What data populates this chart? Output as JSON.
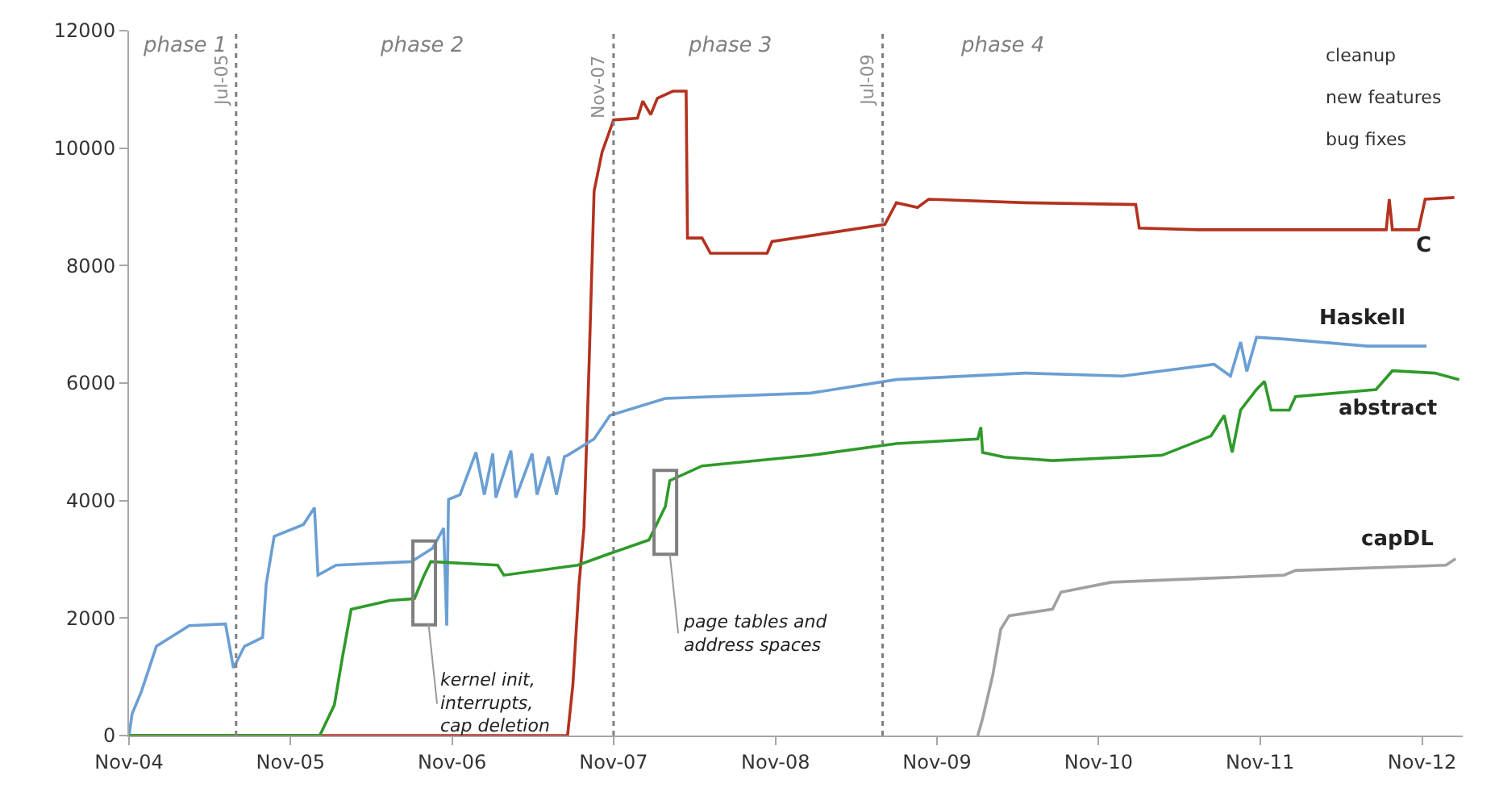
{
  "chart_data": {
    "type": "line",
    "xlim": [
      "2004-11-01",
      "2013-02-01"
    ],
    "ylim": [
      0,
      12000
    ],
    "xticks": [
      {
        "value": "2004-11-01",
        "label": "Nov-04"
      },
      {
        "value": "2005-11-01",
        "label": "Nov-05"
      },
      {
        "value": "2006-11-01",
        "label": "Nov-06"
      },
      {
        "value": "2007-11-01",
        "label": "Nov-07"
      },
      {
        "value": "2008-11-01",
        "label": "Nov-08"
      },
      {
        "value": "2009-11-01",
        "label": "Nov-09"
      },
      {
        "value": "2010-11-01",
        "label": "Nov-10"
      },
      {
        "value": "2011-11-01",
        "label": "Nov-11"
      },
      {
        "value": "2012-11-01",
        "label": "Nov-12"
      }
    ],
    "yticks": [
      0,
      2000,
      4000,
      6000,
      8000,
      10000,
      12000
    ],
    "legend": false,
    "marker": "none",
    "line_style": "solid",
    "series": [
      {
        "name": "C",
        "color": "#b3321f",
        "x": [
          "2004-11-01",
          "2007-07-20",
          "2007-08-01",
          "2007-08-15",
          "2007-08-26",
          "2007-09-07",
          "2007-09-18",
          "2007-10-06",
          "2007-11-01",
          "2007-12-25",
          "2008-01-06",
          "2008-01-24",
          "2008-02-08",
          "2008-03-14",
          "2008-04-13",
          "2008-04-16",
          "2008-05-19",
          "2008-06-07",
          "2008-10-13",
          "2008-10-24",
          "2009-07-06",
          "2009-08-01",
          "2009-09-18",
          "2009-10-13",
          "2010-05-19",
          "2011-01-24",
          "2011-02-01",
          "2011-06-14",
          "2012-08-12",
          "2012-08-19",
          "2012-08-26",
          "2012-10-24",
          "2012-11-08",
          "2013-01-13"
        ],
        "values": [
          0,
          0,
          860,
          2580,
          3530,
          6400,
          9270,
          9930,
          10480,
          10510,
          10800,
          10570,
          10850,
          10970,
          10970,
          8470,
          8470,
          8210,
          8210,
          8410,
          8700,
          9070,
          8990,
          9130,
          9070,
          9040,
          8640,
          8610,
          8610,
          9130,
          8610,
          8610,
          9130,
          9160
        ]
      },
      {
        "name": "Haskell",
        "color": "#6b9fd3",
        "x": [
          "2004-11-01",
          "2004-11-08",
          "2004-11-29",
          "2005-01-02",
          "2005-03-17",
          "2005-06-07",
          "2005-06-25",
          "2005-07-20",
          "2005-08-30",
          "2005-09-07",
          "2005-09-25",
          "2005-11-30",
          "2005-12-25",
          "2006-01-02",
          "2006-02-12",
          "2006-08-01",
          "2006-09-18",
          "2006-10-13",
          "2006-10-20",
          "2006-10-24",
          "2006-11-19",
          "2006-12-25",
          "2007-01-13",
          "2007-02-01",
          "2007-02-08",
          "2007-03-14",
          "2007-03-25",
          "2007-05-01",
          "2007-05-12",
          "2007-06-07",
          "2007-06-25",
          "2007-07-13",
          "2007-07-20",
          "2007-09-18",
          "2007-10-24",
          "2008-02-26",
          "2009-01-20",
          "2009-08-01",
          "2010-05-19",
          "2010-12-25",
          "2011-07-20",
          "2011-08-26",
          "2011-09-18",
          "2011-10-02",
          "2011-10-24",
          "2011-12-25",
          "2012-06-30",
          "2012-11-11"
        ],
        "values": [
          0,
          370,
          750,
          1520,
          1870,
          1900,
          1150,
          1520,
          1670,
          2580,
          3390,
          3590,
          3880,
          2730,
          2900,
          2960,
          3190,
          3530,
          1870,
          4020,
          4100,
          4820,
          4100,
          4800,
          4050,
          4850,
          4050,
          4800,
          4100,
          4750,
          4100,
          4750,
          4770,
          5050,
          5450,
          5740,
          5830,
          6060,
          6170,
          6120,
          6320,
          6120,
          6700,
          6200,
          6780,
          6750,
          6630,
          6630
        ]
      },
      {
        "name": "abstract",
        "color": "#2f9a2a",
        "x": [
          "2004-11-01",
          "2006-01-06",
          "2006-02-08",
          "2006-02-26",
          "2006-03-18",
          "2006-06-14",
          "2006-08-08",
          "2006-08-30",
          "2006-09-14",
          "2007-02-12",
          "2007-02-26",
          "2007-08-12",
          "2007-10-24",
          "2008-01-20",
          "2008-02-26",
          "2008-03-07",
          "2008-05-19",
          "2009-01-20",
          "2009-08-01",
          "2010-02-01",
          "2010-02-08",
          "2010-02-12",
          "2010-04-02",
          "2010-07-20",
          "2011-03-24",
          "2011-07-13",
          "2011-08-12",
          "2011-08-30",
          "2011-09-18",
          "2011-10-24",
          "2011-11-11",
          "2011-11-26",
          "2012-01-06",
          "2012-01-20",
          "2012-07-20",
          "2012-08-26",
          "2012-11-30",
          "2013-01-24"
        ],
        "values": [
          0,
          0,
          520,
          1320,
          2150,
          2300,
          2330,
          2730,
          2960,
          2900,
          2730,
          2900,
          3100,
          3330,
          3900,
          4340,
          4590,
          4770,
          4970,
          5050,
          5250,
          4820,
          4740,
          4680,
          4770,
          5100,
          5450,
          4820,
          5540,
          5890,
          6030,
          5540,
          5540,
          5770,
          5890,
          6210,
          6170,
          6060
        ]
      },
      {
        "name": "capDL",
        "color": "#a0a0a0",
        "x": [
          "2010-02-01",
          "2010-02-12",
          "2010-03-07",
          "2010-03-25",
          "2010-04-13",
          "2010-07-20",
          "2010-08-08",
          "2010-11-30",
          "2011-12-25",
          "2012-01-20",
          "2012-12-25",
          "2013-01-16"
        ],
        "values": [
          0,
          290,
          1030,
          1810,
          2040,
          2150,
          2440,
          2610,
          2730,
          2810,
          2900,
          3010
        ]
      }
    ],
    "ref_lines": [
      {
        "axis": "x",
        "value": "2005-07-01",
        "label": "Jul-05",
        "color": "#7f7f7f",
        "line_style": "dotted"
      },
      {
        "axis": "x",
        "value": "2007-11-01",
        "label": "Nov-07",
        "color": "#7f7f7f",
        "line_style": "dotted"
      },
      {
        "axis": "x",
        "value": "2009-07-01",
        "label": "Jul-09",
        "color": "#7f7f7f",
        "line_style": "dotted"
      }
    ],
    "annotations": [
      "phase 1",
      "phase 2",
      "phase 3",
      "phase 4",
      "cleanup",
      "new features",
      "bug fixes",
      {
        "text": "kernel init,\ninterrupts,\ncap deletion",
        "x": "2006-08-30",
        "y": 2600
      },
      {
        "text": "page tables and\naddress spaces",
        "x": "2008-02-26",
        "y": 3800
      }
    ]
  }
}
